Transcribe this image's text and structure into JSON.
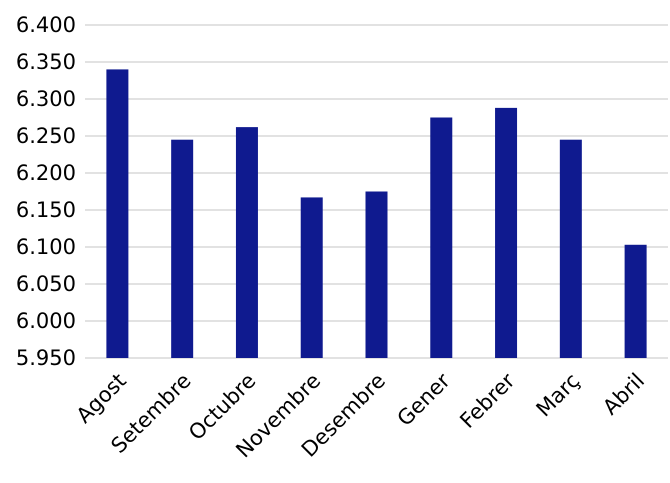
{
  "chart_data": {
    "type": "bar",
    "categories": [
      "Agost",
      "Setembre",
      "Octubre",
      "Novembre",
      "Desembre",
      "Gener",
      "Febrer",
      "Març",
      "Abril"
    ],
    "values": [
      6340,
      6245,
      6262,
      6167,
      6175,
      6275,
      6288,
      6245,
      6103
    ],
    "y_tick_labels": [
      "5.950",
      "6.000",
      "6.050",
      "6.100",
      "6.150",
      "6.200",
      "6.250",
      "6.300",
      "6.350",
      "6.400"
    ],
    "ylim": [
      5950,
      6400
    ],
    "ytick_step": 50,
    "title": "",
    "xlabel": "",
    "ylabel": "",
    "grid": "horizontal",
    "legend": "none",
    "bar_color": "#0f1a8f",
    "grid_color": "#d9d9d9"
  }
}
